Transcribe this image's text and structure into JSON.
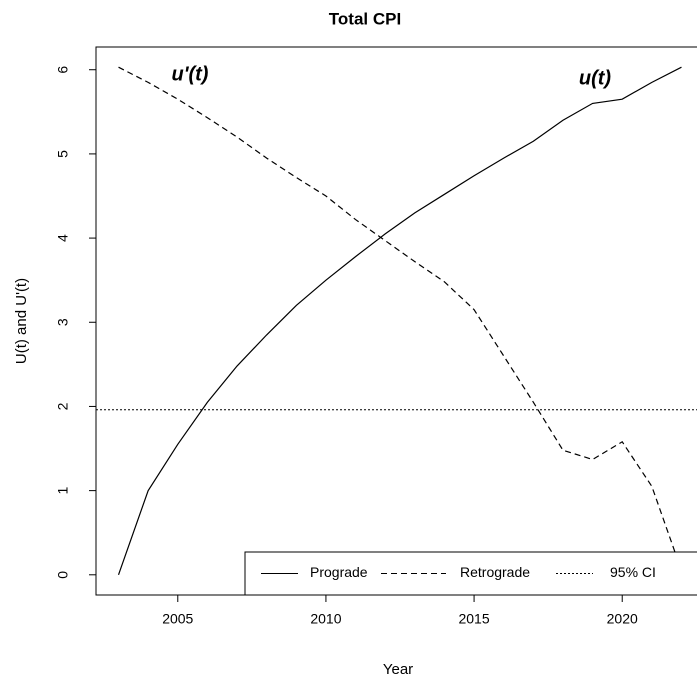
{
  "chart_data": {
    "type": "line",
    "title": "Total CPI",
    "x_label": "Year",
    "y_label": "U(t) and U'(t)",
    "x": [
      2003,
      2004,
      2005,
      2006,
      2007,
      2008,
      2009,
      2010,
      2011,
      2012,
      2013,
      2014,
      2015,
      2016,
      2017,
      2018,
      2019,
      2020,
      2021,
      2022
    ],
    "series": [
      {
        "name": "Prograde",
        "color": "#000000",
        "dash": "solid",
        "values": [
          0,
          1.0,
          1.55,
          2.05,
          2.48,
          2.85,
          3.2,
          3.5,
          3.78,
          4.05,
          4.3,
          4.52,
          4.74,
          4.95,
          5.15,
          5.4,
          5.6,
          5.65,
          5.85,
          6.03
        ]
      },
      {
        "name": "Retrograde",
        "color": "#000000",
        "dash": "dashed",
        "values": [
          6.03,
          5.85,
          5.65,
          5.43,
          5.2,
          4.95,
          4.72,
          4.5,
          4.22,
          3.97,
          3.72,
          3.48,
          3.15,
          2.6,
          2.05,
          1.48,
          1.37,
          1.58,
          1.05,
          0.05
        ]
      }
    ],
    "reference_lines": [
      {
        "name": "95% CI",
        "value": 1.96,
        "color": "#000000",
        "dash": "dotted"
      }
    ],
    "annotations": [
      "u'(t)",
      "u(t)"
    ],
    "xlim": [
      2002.24,
      2022.76
    ],
    "xticks": [
      2005,
      2010,
      2015,
      2020
    ],
    "ylim": [
      -0.24,
      6.27
    ],
    "yticks": [
      0,
      1,
      2,
      3,
      4,
      5,
      6
    ],
    "legend": "bottom-right",
    "grid": false
  }
}
